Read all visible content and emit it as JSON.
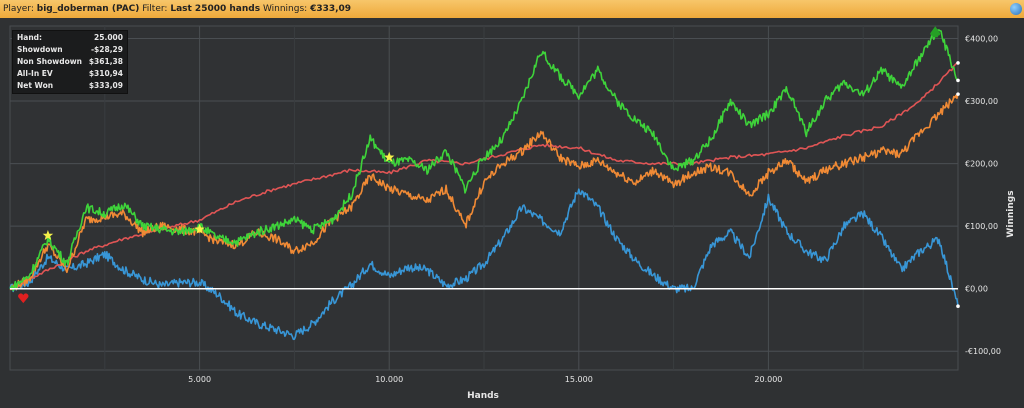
{
  "header": {
    "player_label": "Player:",
    "player_value": "big_doberman (PAC)",
    "filter_label": "Filter:",
    "filter_value": "Last 25000 hands",
    "winnings_label": "Winnings:",
    "winnings_value": "€333,09"
  },
  "stats": [
    {
      "label": "Hand:",
      "value": "25.000"
    },
    {
      "label": "Showdown",
      "value": "-$28,29"
    },
    {
      "label": "Non Showdown",
      "value": "$361,38"
    },
    {
      "label": "All-In EV",
      "value": "$310,94"
    },
    {
      "label": "Net Won",
      "value": "$333,09"
    }
  ],
  "colors": {
    "net_won": "#3ed33a",
    "all_in_ev": "#f08a35",
    "non_showdown": "#e05555",
    "showdown": "#3896d6",
    "background": "#2f3133",
    "header": "#f2b24a"
  },
  "chart_data": {
    "type": "line",
    "xlabel": "Hands",
    "ylabel": "Winnings",
    "xlim": [
      0,
      25000
    ],
    "ylim": [
      -130,
      420
    ],
    "x_ticks": [
      5000,
      10000,
      15000,
      20000
    ],
    "x_tick_labels": [
      "5.000",
      "10.000",
      "15.000",
      "20.000"
    ],
    "y_ticks": [
      -100,
      0,
      100,
      200,
      300,
      400
    ],
    "y_tick_labels": [
      "-€100,00",
      "€0,00",
      "€100,00",
      "€200,00",
      "€300,00",
      "€400,00"
    ],
    "grid": true,
    "series": [
      {
        "key": "net_won",
        "x": [
          0,
          500,
          1000,
          1500,
          2000,
          2500,
          3000,
          3500,
          4000,
          4500,
          5000,
          5500,
          6000,
          6500,
          7000,
          7500,
          8000,
          8500,
          9000,
          9500,
          10000,
          10500,
          11000,
          11500,
          12000,
          12500,
          13000,
          13500,
          14000,
          14500,
          15000,
          15500,
          16000,
          16500,
          17000,
          17500,
          18000,
          18500,
          19000,
          19500,
          20000,
          20500,
          21000,
          21500,
          22000,
          22500,
          23000,
          23500,
          24000,
          24500,
          25000
        ],
        "values": [
          0,
          20,
          80,
          40,
          130,
          120,
          135,
          100,
          95,
          90,
          100,
          80,
          75,
          90,
          100,
          110,
          95,
          110,
          150,
          240,
          200,
          205,
          190,
          220,
          160,
          210,
          240,
          300,
          380,
          340,
          310,
          350,
          300,
          270,
          245,
          190,
          205,
          240,
          300,
          260,
          280,
          320,
          250,
          300,
          330,
          310,
          350,
          320,
          370,
          415,
          333
        ]
      },
      {
        "key": "all_in_ev",
        "x": [
          0,
          500,
          1000,
          1500,
          2000,
          2500,
          3000,
          3500,
          4000,
          4500,
          5000,
          5500,
          6000,
          6500,
          7000,
          7500,
          8000,
          8500,
          9000,
          9500,
          10000,
          10500,
          11000,
          11500,
          12000,
          12500,
          13000,
          13500,
          14000,
          14500,
          15000,
          15500,
          16000,
          16500,
          17000,
          17500,
          18000,
          18500,
          19000,
          19500,
          20000,
          20500,
          21000,
          21500,
          22000,
          22500,
          23000,
          23500,
          24000,
          24500,
          25000
        ],
        "values": [
          0,
          15,
          70,
          30,
          110,
          115,
          120,
          90,
          100,
          95,
          90,
          75,
          70,
          90,
          80,
          60,
          75,
          110,
          130,
          180,
          160,
          150,
          140,
          160,
          100,
          170,
          200,
          220,
          250,
          210,
          195,
          205,
          185,
          170,
          190,
          165,
          185,
          195,
          185,
          150,
          185,
          205,
          170,
          190,
          200,
          210,
          220,
          215,
          250,
          280,
          311
        ]
      },
      {
        "key": "non_showdown",
        "x": [
          0,
          1000,
          2000,
          3000,
          4000,
          5000,
          6000,
          7000,
          8000,
          9000,
          10000,
          11000,
          12000,
          13000,
          14000,
          15000,
          16000,
          17000,
          18000,
          19000,
          20000,
          21000,
          22000,
          23000,
          24000,
          25000
        ],
        "values": [
          0,
          30,
          60,
          80,
          95,
          110,
          140,
          160,
          175,
          190,
          185,
          205,
          200,
          215,
          230,
          225,
          205,
          200,
          200,
          210,
          215,
          225,
          245,
          260,
          300,
          361
        ]
      },
      {
        "key": "showdown",
        "x": [
          0,
          500,
          1000,
          1500,
          2000,
          2500,
          3000,
          3500,
          4000,
          4500,
          5000,
          5500,
          6000,
          6500,
          7000,
          7500,
          8000,
          8500,
          9000,
          9500,
          10000,
          10500,
          11000,
          11500,
          12000,
          12500,
          13000,
          13500,
          14000,
          14500,
          15000,
          15500,
          16000,
          16500,
          17000,
          17500,
          18000,
          18500,
          19000,
          19500,
          20000,
          20500,
          21000,
          21500,
          22000,
          22500,
          23000,
          23500,
          24000,
          24500,
          25000
        ],
        "values": [
          0,
          10,
          50,
          30,
          40,
          55,
          30,
          15,
          5,
          10,
          10,
          -10,
          -40,
          -55,
          -65,
          -75,
          -55,
          -20,
          5,
          40,
          20,
          35,
          30,
          5,
          15,
          40,
          80,
          130,
          110,
          90,
          160,
          130,
          80,
          45,
          20,
          0,
          0,
          70,
          90,
          50,
          145,
          90,
          60,
          45,
          100,
          120,
          80,
          30,
          60,
          80,
          -28
        ]
      }
    ],
    "markers": [
      {
        "type": "star",
        "color": "#f5f04a",
        "x": 1000,
        "y": 85
      },
      {
        "type": "star",
        "color": "#f5f04a",
        "x": 5000,
        "y": 95
      },
      {
        "type": "star",
        "color": "#f5f04a",
        "x": 10000,
        "y": 210
      },
      {
        "type": "heart",
        "color": "#e02020",
        "x": 350,
        "y": -15
      },
      {
        "type": "spade",
        "color": "#25a025",
        "x": 24400,
        "y": 410
      }
    ]
  }
}
